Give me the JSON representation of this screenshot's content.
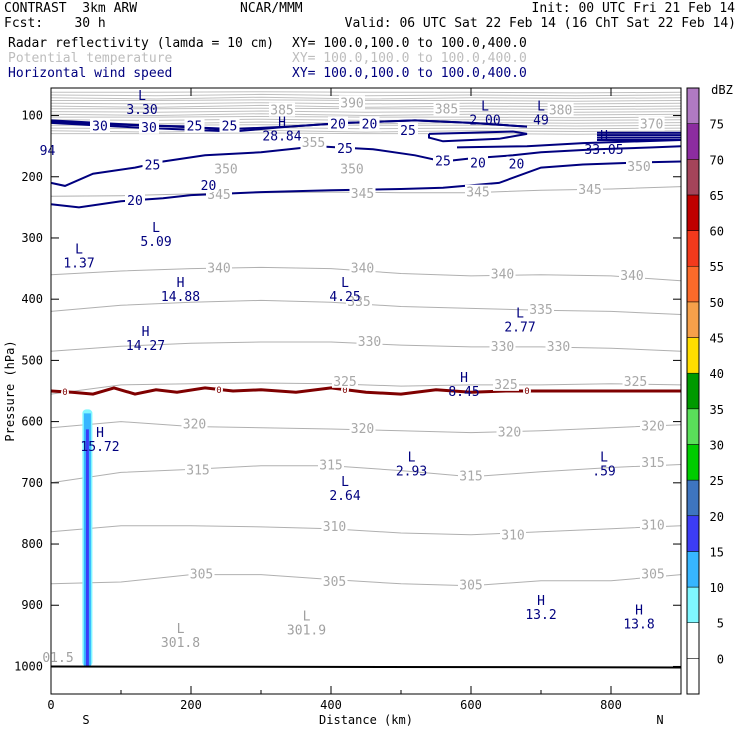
{
  "header": {
    "left1": "CONTRAST  3km ARW",
    "center1": "NCAR/MMM",
    "right1": "Init: 00 UTC Fri 21 Feb 14",
    "left2": "Fcst:    30 h",
    "right2": "Valid: 06 UTC Sat 22 Feb 14 (16 ChT Sat 22 Feb 14)",
    "field1": "Radar reflectivity (lamda = 10 cm)",
    "field1_xy": "XY= 100.0,100.0 to 100.0,400.0",
    "field2": "Potential temperature",
    "field2_xy": "XY= 100.0,100.0 to 100.0,400.0",
    "field3": "Horizontal wind speed",
    "field3_xy": "XY= 100.0,100.0 to 100.0,400.0"
  },
  "chart_data": {
    "type": "contour-cross-section",
    "xlabel": "Distance (km)",
    "ylabel": "Pressure (hPa)",
    "xlim": [
      0,
      900
    ],
    "ylim": [
      1045,
      55
    ],
    "x_ticks": [
      0,
      200,
      400,
      600,
      800
    ],
    "y_ticks": [
      100,
      200,
      300,
      400,
      500,
      600,
      700,
      800,
      900,
      1000
    ],
    "x_end_labels": {
      "left": "S",
      "right": "N"
    },
    "colorbar": {
      "unit": "dBZ",
      "levels": [
        0,
        5,
        10,
        15,
        20,
        25,
        30,
        35,
        40,
        45,
        50,
        55,
        60,
        65,
        70,
        75
      ],
      "colors": [
        "#ffffff",
        "#7ff7ff",
        "#37b6ff",
        "#3c3cf5",
        "#3e75c0",
        "#00cc00",
        "#5adf5a",
        "#009a00",
        "#ffdd00",
        "#f6a04a",
        "#fb6a2a",
        "#f23a1c",
        "#c00000",
        "#a4445a",
        "#8c2ca0",
        "#b07ac2"
      ]
    },
    "potential_temperature": {
      "color": "#b0b0b0",
      "lines": [
        {
          "level": 345,
          "points": [
            [
              0,
              232
            ],
            [
              100,
              231
            ],
            [
              200,
              228
            ],
            [
              300,
              226
            ],
            [
              400,
              225
            ],
            [
              500,
              226
            ],
            [
              600,
              226
            ],
            [
              700,
              222
            ],
            [
              800,
              220
            ],
            [
              900,
              216
            ]
          ]
        },
        {
          "level": 340,
          "points": [
            [
              0,
              360
            ],
            [
              100,
              354
            ],
            [
              200,
              350
            ],
            [
              300,
              348
            ],
            [
              400,
              350
            ],
            [
              500,
              358
            ],
            [
              600,
              362
            ],
            [
              700,
              360
            ],
            [
              800,
              362
            ],
            [
              900,
              370
            ]
          ]
        },
        {
          "level": 335,
          "points": [
            [
              0,
              420
            ],
            [
              100,
              410
            ],
            [
              200,
              405
            ],
            [
              300,
              402
            ],
            [
              400,
              405
            ],
            [
              500,
              412
            ],
            [
              600,
              415
            ],
            [
              700,
              418
            ],
            [
              800,
              420
            ],
            [
              900,
              425
            ]
          ]
        },
        {
          "level": 330,
          "points": [
            [
              0,
              485
            ],
            [
              100,
              477
            ],
            [
              200,
              472
            ],
            [
              300,
              470
            ],
            [
              400,
              470
            ],
            [
              500,
              475
            ],
            [
              600,
              478
            ],
            [
              700,
              478
            ],
            [
              800,
              480
            ],
            [
              900,
              485
            ]
          ]
        },
        {
          "level": 325,
          "points": [
            [
              0,
              555
            ],
            [
              100,
              540
            ],
            [
              200,
              538
            ],
            [
              300,
              537
            ],
            [
              400,
              538
            ],
            [
              500,
              542
            ],
            [
              600,
              540
            ],
            [
              700,
              540
            ],
            [
              800,
              538
            ],
            [
              900,
              540
            ]
          ]
        },
        {
          "level": 320,
          "points": [
            [
              0,
              610
            ],
            [
              100,
              600
            ],
            [
              200,
              608
            ],
            [
              300,
              610
            ],
            [
              400,
              612
            ],
            [
              500,
              615
            ],
            [
              600,
              618
            ],
            [
              700,
              615
            ],
            [
              800,
              610
            ],
            [
              900,
              605
            ]
          ]
        },
        {
          "level": 315,
          "points": [
            [
              0,
              700
            ],
            [
              100,
              683
            ],
            [
              200,
              678
            ],
            [
              300,
              672
            ],
            [
              400,
              672
            ],
            [
              500,
              680
            ],
            [
              600,
              690
            ],
            [
              700,
              682
            ],
            [
              800,
              675
            ],
            [
              900,
              670
            ]
          ]
        },
        {
          "level": 310,
          "points": [
            [
              0,
              780
            ],
            [
              100,
              770
            ],
            [
              200,
              770
            ],
            [
              300,
              772
            ],
            [
              400,
              775
            ],
            [
              500,
              782
            ],
            [
              600,
              785
            ],
            [
              700,
              780
            ],
            [
              800,
              775
            ],
            [
              900,
              770
            ]
          ]
        },
        {
          "level": 305,
          "points": [
            [
              0,
              865
            ],
            [
              100,
              862
            ],
            [
              200,
              850
            ],
            [
              300,
              850
            ],
            [
              400,
              858
            ],
            [
              500,
              865
            ],
            [
              600,
              868
            ],
            [
              700,
              860
            ],
            [
              800,
              860
            ],
            [
              900,
              850
            ]
          ]
        }
      ],
      "labels": [
        {
          "text": "390",
          "x": 430,
          "y": 80
        },
        {
          "text": "385",
          "x": 330,
          "y": 92
        },
        {
          "text": "385",
          "x": 565,
          "y": 90
        },
        {
          "text": "380",
          "x": 728,
          "y": 92
        },
        {
          "text": "370",
          "x": 858,
          "y": 115
        },
        {
          "text": "355",
          "x": 375,
          "y": 145
        },
        {
          "text": "350",
          "x": 250,
          "y": 188
        },
        {
          "text": "350",
          "x": 430,
          "y": 188
        },
        {
          "text": "350",
          "x": 840,
          "y": 184
        },
        {
          "text": "345",
          "x": 240,
          "y": 230
        },
        {
          "text": "345",
          "x": 445,
          "y": 228
        },
        {
          "text": "345",
          "x": 610,
          "y": 226
        },
        {
          "text": "345",
          "x": 770,
          "y": 222
        },
        {
          "text": "340",
          "x": 240,
          "y": 350
        },
        {
          "text": "340",
          "x": 445,
          "y": 350
        },
        {
          "text": "340",
          "x": 645,
          "y": 360
        },
        {
          "text": "340",
          "x": 830,
          "y": 362
        },
        {
          "text": "335",
          "x": 440,
          "y": 405
        },
        {
          "text": "335",
          "x": 700,
          "y": 418
        },
        {
          "text": "330",
          "x": 455,
          "y": 470
        },
        {
          "text": "330",
          "x": 645,
          "y": 478
        },
        {
          "text": "330",
          "x": 725,
          "y": 478
        },
        {
          "text": "325",
          "x": 420,
          "y": 535
        },
        {
          "text": "325",
          "x": 650,
          "y": 540
        },
        {
          "text": "325",
          "x": 835,
          "y": 535
        },
        {
          "text": "320",
          "x": 205,
          "y": 605
        },
        {
          "text": "320",
          "x": 445,
          "y": 612
        },
        {
          "text": "320",
          "x": 655,
          "y": 618
        },
        {
          "text": "320",
          "x": 860,
          "y": 608
        },
        {
          "text": "315",
          "x": 210,
          "y": 680
        },
        {
          "text": "315",
          "x": 400,
          "y": 672
        },
        {
          "text": "315",
          "x": 600,
          "y": 690
        },
        {
          "text": "315",
          "x": 860,
          "y": 668
        },
        {
          "text": "310",
          "x": 405,
          "y": 772
        },
        {
          "text": "310",
          "x": 660,
          "y": 786
        },
        {
          "text": "310",
          "x": 860,
          "y": 770
        },
        {
          "text": "305",
          "x": 215,
          "y": 850
        },
        {
          "text": "305",
          "x": 405,
          "y": 862
        },
        {
          "text": "305",
          "x": 600,
          "y": 868
        },
        {
          "text": "305",
          "x": 860,
          "y": 850
        }
      ]
    },
    "wind_speed": {
      "color": "#00007f",
      "lines": [
        {
          "level": 20,
          "points": [
            [
              0,
              245
            ],
            [
              40,
              250
            ],
            [
              100,
              240
            ],
            [
              160,
              235
            ],
            [
              200,
              230
            ],
            [
              300,
              225
            ],
            [
              400,
              222
            ],
            [
              500,
              220
            ],
            [
              560,
              218
            ],
            [
              640,
              210
            ],
            [
              700,
              185
            ],
            [
              760,
              180
            ],
            [
              860,
              176
            ],
            [
              900,
              175
            ]
          ]
        },
        {
          "level": 25,
          "points": [
            [
              0,
              210
            ],
            [
              20,
              215
            ],
            [
              60,
              195
            ],
            [
              120,
              185
            ],
            [
              160,
              175
            ],
            [
              220,
              165
            ],
            [
              300,
              160
            ],
            [
              380,
              150
            ],
            [
              460,
              155
            ],
            [
              520,
              165
            ],
            [
              560,
              175
            ],
            [
              600,
              170
            ],
            [
              660,
              165
            ],
            [
              700,
              160
            ],
            [
              780,
              155
            ],
            [
              860,
              152
            ],
            [
              900,
              150
            ]
          ]
        },
        {
          "level": 30,
          "points": [
            [
              0,
              110
            ],
            [
              100,
              115
            ],
            [
              200,
              118
            ],
            [
              260,
              125
            ]
          ]
        },
        {
          "level": 30,
          "points": [
            [
              580,
              152
            ],
            [
              680,
              150
            ],
            [
              760,
              145
            ],
            [
              900,
              140
            ]
          ]
        }
      ],
      "labels": [
        {
          "text": "30",
          "x": 70,
          "y": 118
        },
        {
          "text": "30",
          "x": 140,
          "y": 120
        },
        {
          "text": "25",
          "x": 205,
          "y": 118
        },
        {
          "text": "25",
          "x": 255,
          "y": 118
        },
        {
          "text": "20",
          "x": 410,
          "y": 115
        },
        {
          "text": "20",
          "x": 455,
          "y": 115
        },
        {
          "text": "25",
          "x": 510,
          "y": 125
        },
        {
          "text": "25",
          "x": 420,
          "y": 155
        },
        {
          "text": "25",
          "x": 145,
          "y": 182
        },
        {
          "text": "20",
          "x": 225,
          "y": 215
        },
        {
          "text": "20",
          "x": 120,
          "y": 240
        },
        {
          "text": "25",
          "x": 560,
          "y": 175
        },
        {
          "text": "20",
          "x": 610,
          "y": 178
        },
        {
          "text": "20",
          "x": 665,
          "y": 180
        },
        {
          "text": "94",
          "x": -5,
          "y": 158
        }
      ]
    },
    "freezing_line": {
      "color": "#7f0000",
      "label": "0",
      "points": [
        [
          0,
          550
        ],
        [
          30,
          552
        ],
        [
          60,
          555
        ],
        [
          90,
          545
        ],
        [
          120,
          555
        ],
        [
          150,
          548
        ],
        [
          180,
          552
        ],
        [
          220,
          545
        ],
        [
          260,
          550
        ],
        [
          300,
          548
        ],
        [
          350,
          552
        ],
        [
          400,
          545
        ],
        [
          450,
          552
        ],
        [
          500,
          555
        ],
        [
          550,
          548
        ],
        [
          600,
          552
        ],
        [
          650,
          550
        ],
        [
          700,
          550
        ],
        [
          800,
          550
        ],
        [
          900,
          550
        ]
      ]
    },
    "reflectivity_column": {
      "x": 52,
      "top_pressure": 580,
      "bottom_pressure": 1000
    },
    "surface_line": {
      "pressure": 1000
    },
    "extrema": [
      {
        "mark": "L",
        "value": "3.30",
        "x": 130,
        "y": 75,
        "color": "#00007f"
      },
      {
        "mark": "L",
        "value": "2.00",
        "x": 620,
        "y": 92,
        "color": "#00007f"
      },
      {
        "mark": "L",
        "value": "49",
        "x": 700,
        "y": 92,
        "color": "#00007f"
      },
      {
        "mark": "H",
        "value": "28.84",
        "x": 330,
        "y": 118,
        "color": "#00007f"
      },
      {
        "mark": "H",
        "value": "33.05",
        "x": 790,
        "y": 140,
        "color": "#00007f"
      },
      {
        "mark": "L",
        "value": "1.37",
        "x": 40,
        "y": 325,
        "color": "#00007f"
      },
      {
        "mark": "L",
        "value": "5.09",
        "x": 150,
        "y": 290,
        "color": "#00007f"
      },
      {
        "mark": "H",
        "value": "14.88",
        "x": 185,
        "y": 380,
        "color": "#00007f"
      },
      {
        "mark": "L",
        "value": "4.25",
        "x": 420,
        "y": 380,
        "color": "#00007f"
      },
      {
        "mark": "L",
        "value": "2.77",
        "x": 670,
        "y": 430,
        "color": "#00007f"
      },
      {
        "mark": "H",
        "value": "14.27",
        "x": 135,
        "y": 460,
        "color": "#00007f"
      },
      {
        "mark": "H",
        "value": "8.45",
        "x": 590,
        "y": 535,
        "color": "#00007f"
      },
      {
        "mark": "H",
        "value": "15.72",
        "x": 70,
        "y": 625,
        "color": "#00007f"
      },
      {
        "mark": "L",
        "value": "2.93",
        "x": 515,
        "y": 665,
        "color": "#00007f"
      },
      {
        "mark": "L",
        "value": ".59",
        "x": 790,
        "y": 665,
        "color": "#00007f"
      },
      {
        "mark": "L",
        "value": "2.64",
        "x": 420,
        "y": 705,
        "color": "#00007f"
      },
      {
        "mark": "H",
        "value": "13.2",
        "x": 700,
        "y": 900,
        "color": "#00007f"
      },
      {
        "mark": "H",
        "value": "13.8",
        "x": 840,
        "y": 915,
        "color": "#00007f"
      },
      {
        "mark": "L",
        "value": "301.8",
        "x": 185,
        "y": 945,
        "color": "#a0a0a0"
      },
      {
        "mark": "L",
        "value": "301.9",
        "x": 365,
        "y": 925,
        "color": "#a0a0a0"
      },
      {
        "mark": "",
        "value": "01.5",
        "x": 10,
        "y": 970,
        "color": "#a0a0a0"
      }
    ]
  }
}
